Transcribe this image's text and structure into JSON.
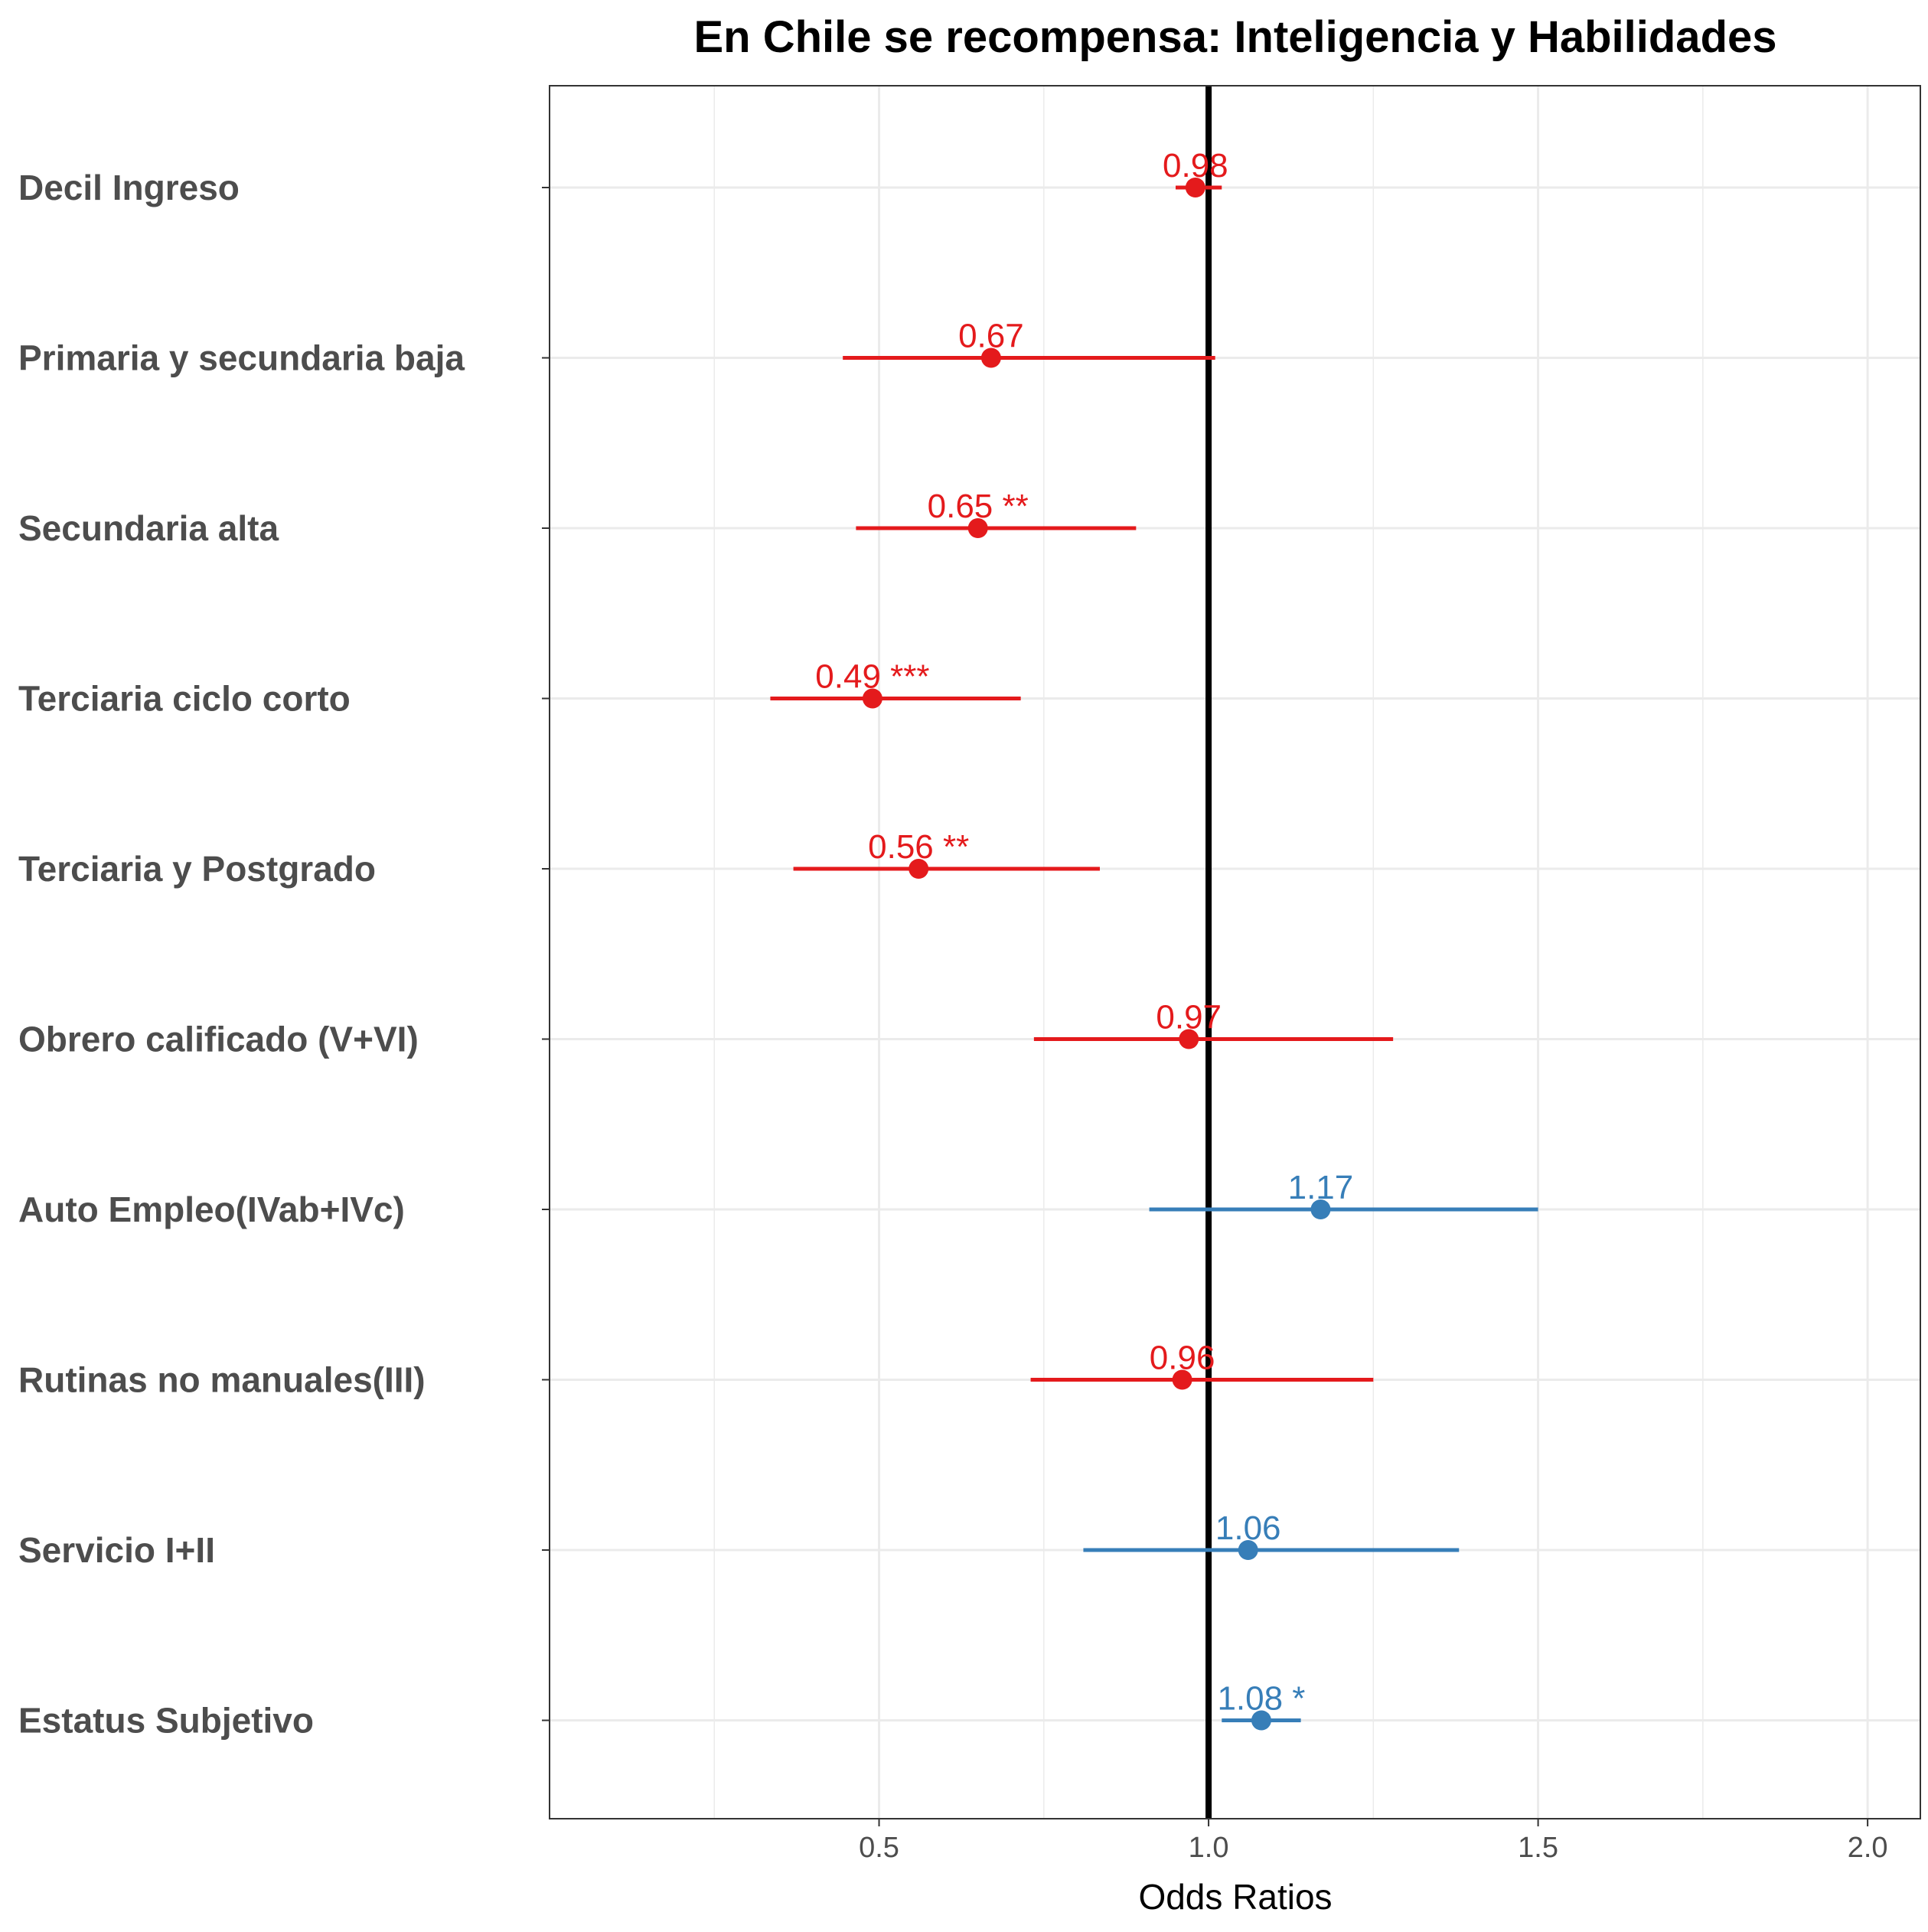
{
  "chart_data": {
    "type": "scatter",
    "subtype": "forest-plot",
    "title": "En Chile se recompensa: Inteligencia y Habilidades",
    "xlabel": "Odds Ratios",
    "ylabel": "",
    "xlim": [
      0.0,
      2.08
    ],
    "xticks": [
      "0.5",
      "1.0",
      "1.5",
      "2.0"
    ],
    "reference_line": 1.0,
    "grid": true,
    "colors": {
      "below_one": "#e41a1c",
      "above_one": "#377eb8",
      "reference": "#000000"
    },
    "terms": [
      {
        "label": "Decil Ingreso",
        "estimate": 0.98,
        "ci_low": 0.95,
        "ci_high": 1.02,
        "text": "0.98",
        "direction": "below_one"
      },
      {
        "label": "Primaria y secundaria baja",
        "estimate": 0.67,
        "ci_low": 0.445,
        "ci_high": 1.01,
        "text": "0.67",
        "direction": "below_one"
      },
      {
        "label": "Secundaria alta",
        "estimate": 0.65,
        "ci_low": 0.465,
        "ci_high": 0.89,
        "text": "0.65 **",
        "direction": "below_one"
      },
      {
        "label": "Terciaria ciclo corto",
        "estimate": 0.49,
        "ci_low": 0.335,
        "ci_high": 0.715,
        "text": "0.49 ***",
        "direction": "below_one"
      },
      {
        "label": "Terciaria y Postgrado",
        "estimate": 0.56,
        "ci_low": 0.37,
        "ci_high": 0.835,
        "text": "0.56 **",
        "direction": "below_one"
      },
      {
        "label": "Obrero calificado (V+VI)",
        "estimate": 0.97,
        "ci_low": 0.735,
        "ci_high": 1.28,
        "text": "0.97",
        "direction": "below_one"
      },
      {
        "label": "Auto Empleo(IVab+IVc)",
        "estimate": 1.17,
        "ci_low": 0.91,
        "ci_high": 1.5,
        "text": "1.17",
        "direction": "above_one"
      },
      {
        "label": "Rutinas no manuales(III)",
        "estimate": 0.96,
        "ci_low": 0.73,
        "ci_high": 1.25,
        "text": "0.96",
        "direction": "below_one"
      },
      {
        "label": "Servicio I+II",
        "estimate": 1.06,
        "ci_low": 0.81,
        "ci_high": 1.38,
        "text": "1.06",
        "direction": "above_one"
      },
      {
        "label": "Estatus Subjetivo",
        "estimate": 1.08,
        "ci_low": 1.02,
        "ci_high": 1.14,
        "text": "1.08 *",
        "direction": "above_one"
      }
    ]
  }
}
